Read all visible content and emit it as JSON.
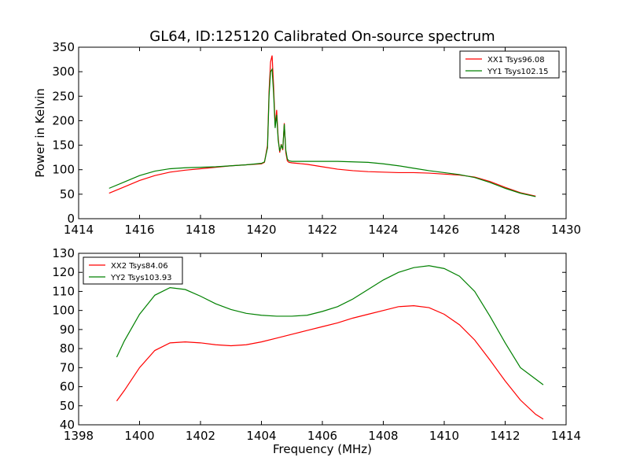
{
  "figure": {
    "title": "GL64, ID:125120 Calibrated On-source spectrum"
  },
  "chart_data": [
    {
      "type": "line",
      "title": "GL64, ID:125120 Calibrated On-source spectrum",
      "xlabel": "",
      "ylabel": "Power in Kelvin",
      "xlim": [
        1414,
        1430
      ],
      "ylim": [
        0,
        350
      ],
      "xticks": [
        1414,
        1416,
        1418,
        1420,
        1422,
        1424,
        1426,
        1428,
        1430
      ],
      "yticks": [
        0,
        50,
        100,
        150,
        200,
        250,
        300,
        350
      ],
      "grid": false,
      "legend_position": "top-right",
      "series": [
        {
          "name": "XX1 Tsys96.08",
          "color": "#ff0000",
          "x": [
            1415.0,
            1415.5,
            1416.0,
            1416.5,
            1417.0,
            1417.5,
            1418.0,
            1418.5,
            1419.0,
            1419.5,
            1420.0,
            1420.1,
            1420.2,
            1420.25,
            1420.3,
            1420.35,
            1420.4,
            1420.45,
            1420.5,
            1420.55,
            1420.6,
            1420.65,
            1420.7,
            1420.75,
            1420.8,
            1420.85,
            1420.9,
            1421.0,
            1421.5,
            1422.0,
            1422.5,
            1423.0,
            1423.5,
            1424.0,
            1424.5,
            1425.0,
            1425.5,
            1426.0,
            1426.5,
            1427.0,
            1427.5,
            1428.0,
            1428.5,
            1429.0
          ],
          "y": [
            52,
            65,
            78,
            88,
            95,
            99,
            102,
            105,
            108,
            110,
            112,
            115,
            150,
            260,
            320,
            333,
            270,
            190,
            222,
            165,
            135,
            152,
            140,
            195,
            135,
            118,
            115,
            114,
            111,
            106,
            101,
            98,
            96,
            95,
            94,
            94,
            93,
            91,
            89,
            85,
            76,
            64,
            53,
            46
          ]
        },
        {
          "name": "YY1 Tsys102.15",
          "color": "#008000",
          "x": [
            1415.0,
            1415.5,
            1416.0,
            1416.5,
            1417.0,
            1417.5,
            1418.0,
            1418.5,
            1419.0,
            1419.5,
            1420.0,
            1420.1,
            1420.2,
            1420.25,
            1420.3,
            1420.35,
            1420.4,
            1420.45,
            1420.5,
            1420.55,
            1420.6,
            1420.65,
            1420.7,
            1420.75,
            1420.8,
            1420.85,
            1420.9,
            1421.0,
            1421.5,
            1422.0,
            1422.5,
            1423.0,
            1423.5,
            1424.0,
            1424.5,
            1425.0,
            1425.5,
            1426.0,
            1426.5,
            1427.0,
            1427.5,
            1428.0,
            1428.5,
            1429.0
          ],
          "y": [
            62,
            75,
            88,
            97,
            102,
            104,
            105,
            106,
            108,
            110,
            113,
            116,
            145,
            250,
            300,
            305,
            255,
            185,
            212,
            160,
            138,
            150,
            142,
            193,
            140,
            122,
            118,
            117,
            117,
            117,
            117,
            116,
            115,
            112,
            108,
            103,
            98,
            94,
            90,
            84,
            74,
            62,
            52,
            45
          ]
        }
      ]
    },
    {
      "type": "line",
      "title": "",
      "xlabel": "Frequency (MHz)",
      "ylabel": "",
      "xlim": [
        1398,
        1414
      ],
      "ylim": [
        40,
        130
      ],
      "xticks": [
        1398,
        1400,
        1402,
        1404,
        1406,
        1408,
        1410,
        1412,
        1414
      ],
      "yticks": [
        40,
        50,
        60,
        70,
        80,
        90,
        100,
        110,
        120,
        130
      ],
      "grid": false,
      "legend_position": "top-left",
      "series": [
        {
          "name": "XX2 Tsys84.06",
          "color": "#ff0000",
          "x": [
            1399.25,
            1399.5,
            1400.0,
            1400.5,
            1401.0,
            1401.5,
            1402.0,
            1402.5,
            1403.0,
            1403.5,
            1404.0,
            1404.5,
            1405.0,
            1405.5,
            1406.0,
            1406.5,
            1407.0,
            1407.5,
            1408.0,
            1408.5,
            1409.0,
            1409.5,
            1410.0,
            1410.5,
            1411.0,
            1411.5,
            1412.0,
            1412.5,
            1413.0,
            1413.25
          ],
          "y": [
            52.5,
            58,
            70,
            79,
            83,
            83.5,
            83,
            82,
            81.5,
            82,
            83.5,
            85.5,
            87.5,
            89.5,
            91.5,
            93.5,
            96,
            98,
            100,
            102,
            102.5,
            101.5,
            98,
            92.5,
            84.5,
            74,
            63,
            53,
            45.5,
            43
          ]
        },
        {
          "name": "YY2 Tsys103.93",
          "color": "#008000",
          "x": [
            1399.25,
            1399.5,
            1400.0,
            1400.5,
            1401.0,
            1401.5,
            1402.0,
            1402.5,
            1403.0,
            1403.5,
            1404.0,
            1404.5,
            1405.0,
            1405.5,
            1406.0,
            1406.5,
            1407.0,
            1407.5,
            1408.0,
            1408.5,
            1409.0,
            1409.5,
            1410.0,
            1410.5,
            1411.0,
            1411.5,
            1412.0,
            1412.5,
            1413.0,
            1413.25
          ],
          "y": [
            75.5,
            84,
            98,
            108,
            112,
            111,
            107.5,
            103.5,
            100.5,
            98.5,
            97.5,
            97,
            97,
            97.5,
            99.5,
            102,
            106,
            111,
            116,
            120,
            122.5,
            123.5,
            122,
            118,
            110,
            97,
            83,
            70,
            64,
            61
          ]
        }
      ]
    }
  ]
}
